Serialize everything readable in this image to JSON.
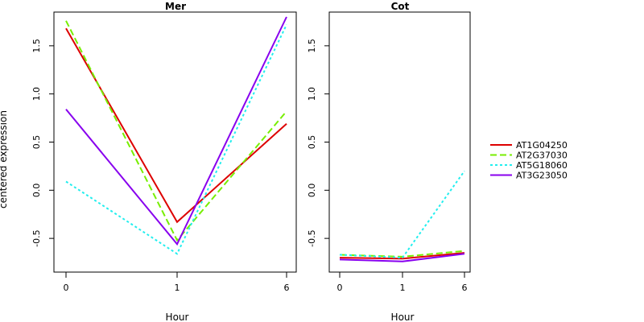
{
  "chart_data": [
    {
      "type": "line",
      "title": "Mer",
      "xlabel": "Hour",
      "ylabel": "centered expression",
      "categories": [
        "0",
        "1",
        "6"
      ],
      "ylim": [
        -0.85,
        1.85
      ],
      "yticks": [
        "-0.5",
        "0.0",
        "0.5",
        "1.0",
        "1.5"
      ],
      "series": [
        {
          "name": "AT1G04250",
          "values": [
            1.68,
            -0.33,
            0.69
          ]
        },
        {
          "name": "AT2G37030",
          "values": [
            1.76,
            -0.52,
            0.82
          ]
        },
        {
          "name": "AT5G18060",
          "values": [
            0.09,
            -0.66,
            1.72
          ]
        },
        {
          "name": "AT3G23050",
          "values": [
            0.84,
            -0.56,
            1.8
          ]
        }
      ]
    },
    {
      "type": "line",
      "title": "Cot",
      "xlabel": "Hour",
      "ylabel": "",
      "categories": [
        "0",
        "1",
        "6"
      ],
      "ylim": [
        -0.85,
        1.85
      ],
      "yticks": [
        "-0.5",
        "0.0",
        "0.5",
        "1.0",
        "1.5"
      ],
      "series": [
        {
          "name": "AT1G04250",
          "values": [
            -0.7,
            -0.71,
            -0.65
          ]
        },
        {
          "name": "AT2G37030",
          "values": [
            -0.67,
            -0.69,
            -0.63
          ]
        },
        {
          "name": "AT5G18060",
          "values": [
            -0.67,
            -0.7,
            0.2
          ]
        },
        {
          "name": "AT3G23050",
          "values": [
            -0.72,
            -0.74,
            -0.66
          ]
        }
      ]
    }
  ],
  "shared_ylabel": "centered expression",
  "legend": {
    "placement": "right",
    "entries": [
      {
        "name": "AT1G04250",
        "color": "#dd0000",
        "dash": "solid"
      },
      {
        "name": "AT2G37030",
        "color": "#77ee00",
        "dash": "dashed"
      },
      {
        "name": "AT5G18060",
        "color": "#22eeee",
        "dash": "dotted"
      },
      {
        "name": "AT3G23050",
        "color": "#8800ee",
        "dash": "solid"
      }
    ]
  }
}
